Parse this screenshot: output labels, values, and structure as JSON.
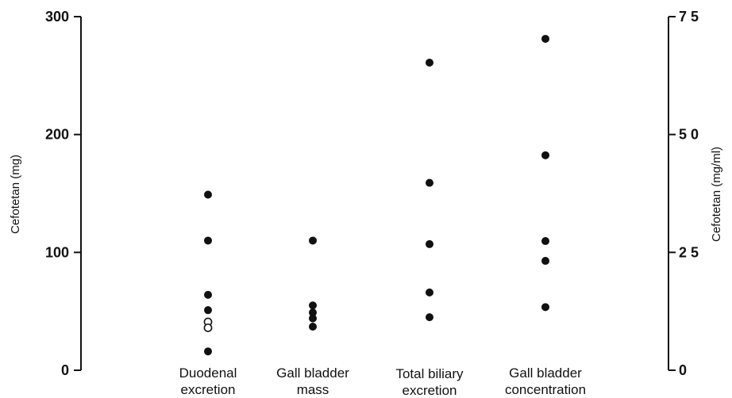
{
  "chart_data": {
    "type": "scatter",
    "title": "",
    "left_axis": {
      "label": "Cefotetan (mg)",
      "ylim": [
        0,
        300
      ],
      "ticks": [
        0,
        100,
        200,
        300
      ],
      "tick_labels": [
        "0",
        "100",
        "200",
        "300"
      ]
    },
    "right_axis": {
      "label": "Cefotetan (mg/ml)",
      "ylim": [
        0,
        75
      ],
      "ticks": [
        0,
        25,
        50,
        75
      ],
      "tick_labels": [
        "0",
        "2 5",
        "5 0",
        "7 5"
      ]
    },
    "categories": [
      [
        "Duodenal",
        "excretion"
      ],
      [
        "Gall bladder",
        "mass"
      ],
      [
        "Total biliary",
        "excretion"
      ],
      [
        "Gall bladder",
        "concentration"
      ]
    ],
    "series": [
      {
        "axis": "left",
        "points": [
          {
            "category": 0,
            "y": 149,
            "filled": true
          },
          {
            "category": 0,
            "y": 110,
            "filled": true
          },
          {
            "category": 0,
            "y": 64,
            "filled": true
          },
          {
            "category": 0,
            "y": 51,
            "filled": true
          },
          {
            "category": 0,
            "y": 41,
            "filled": false
          },
          {
            "category": 0,
            "y": 36,
            "filled": false
          },
          {
            "category": 0,
            "y": 16,
            "filled": true
          },
          {
            "category": 1,
            "y": 110,
            "filled": true
          },
          {
            "category": 1,
            "y": 55,
            "filled": true
          },
          {
            "category": 1,
            "y": 49,
            "filled": true
          },
          {
            "category": 1,
            "y": 44,
            "filled": true
          },
          {
            "category": 1,
            "y": 37,
            "filled": true
          },
          {
            "category": 2,
            "y": 261,
            "filled": true
          },
          {
            "category": 2,
            "y": 159,
            "filled": true
          },
          {
            "category": 2,
            "y": 107,
            "filled": true
          },
          {
            "category": 2,
            "y": 66,
            "filled": true
          },
          {
            "category": 2,
            "y": 45,
            "filled": true
          }
        ]
      },
      {
        "axis": "right",
        "points": [
          {
            "category": 3,
            "y": 70.3,
            "filled": true
          },
          {
            "category": 3,
            "y": 45.6,
            "filled": true
          },
          {
            "category": 3,
            "y": 27.4,
            "filled": true
          },
          {
            "category": 3,
            "y": 23.2,
            "filled": true
          },
          {
            "category": 3,
            "y": 13.4,
            "filled": true
          }
        ]
      }
    ],
    "grid": false,
    "legend": "none"
  }
}
